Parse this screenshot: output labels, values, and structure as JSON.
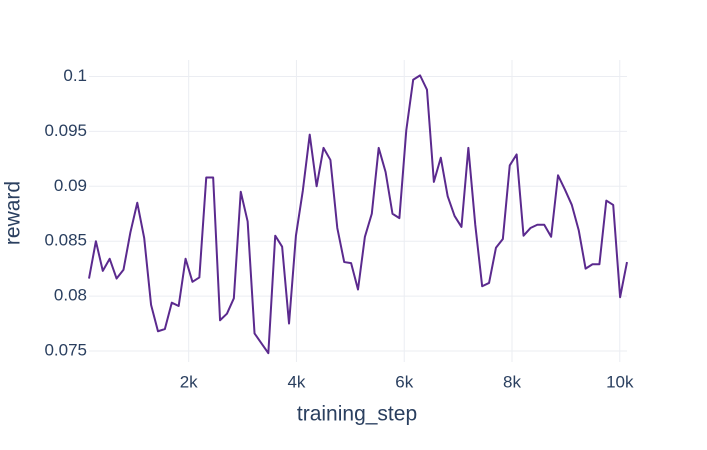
{
  "chart_data": {
    "type": "line",
    "x_label": "training_step",
    "y_label": "reward",
    "x": [
      150,
      278,
      406,
      534,
      662,
      790,
      918,
      1046,
      1174,
      1302,
      1430,
      1558,
      1686,
      1814,
      1942,
      2070,
      2198,
      2326,
      2454,
      2582,
      2710,
      2838,
      2966,
      3094,
      3222,
      3350,
      3478,
      3606,
      3734,
      3862,
      3990,
      4118,
      4246,
      4374,
      4502,
      4630,
      4758,
      4886,
      5014,
      5142,
      5270,
      5398,
      5526,
      5654,
      5782,
      5910,
      6038,
      6166,
      6294,
      6422,
      6550,
      6678,
      6806,
      6934,
      7062,
      7190,
      7318,
      7446,
      7574,
      7702,
      7830,
      7958,
      8086,
      8214,
      8342,
      8470,
      8598,
      8726,
      8854,
      8982,
      9110,
      9238,
      9366,
      9494,
      9622,
      9750,
      9878,
      10006,
      10134
    ],
    "series": [
      {
        "color": "#5b2a8e",
        "values": [
          0.0816,
          0.085,
          0.0823,
          0.0834,
          0.0816,
          0.0824,
          0.0858,
          0.0885,
          0.0853,
          0.0792,
          0.0768,
          0.077,
          0.0794,
          0.0791,
          0.0834,
          0.0813,
          0.0817,
          0.0908,
          0.0908,
          0.0778,
          0.0784,
          0.0798,
          0.0895,
          0.0868,
          0.0766,
          0.0757,
          0.0748,
          0.0855,
          0.0845,
          0.0775,
          0.0855,
          0.0896,
          0.0947,
          0.09,
          0.0935,
          0.0924,
          0.0862,
          0.0831,
          0.083,
          0.0806,
          0.0854,
          0.0875,
          0.0935,
          0.0913,
          0.0875,
          0.0871,
          0.0951,
          0.0997,
          0.1001,
          0.0988,
          0.0904,
          0.0926,
          0.0891,
          0.0873,
          0.0863,
          0.0935,
          0.0865,
          0.0809,
          0.0812,
          0.0844,
          0.0852,
          0.0919,
          0.0929,
          0.0855,
          0.0862,
          0.0865,
          0.0865,
          0.0854,
          0.091,
          0.0897,
          0.0883,
          0.086,
          0.0825,
          0.0829,
          0.0829,
          0.0887,
          0.0883,
          0.0799,
          0.0831
        ]
      }
    ],
    "xlim": [
      150,
      10134
    ],
    "ylim": [
      0.074,
      0.1015
    ],
    "xticks": [
      {
        "value": 2000,
        "label": "2k"
      },
      {
        "value": 4000,
        "label": "4k"
      },
      {
        "value": 6000,
        "label": "6k"
      },
      {
        "value": 8000,
        "label": "8k"
      },
      {
        "value": 10000,
        "label": "10k"
      }
    ],
    "yticks": [
      0.075,
      0.08,
      0.085,
      0.09,
      0.095,
      0.1
    ],
    "grid": true
  }
}
